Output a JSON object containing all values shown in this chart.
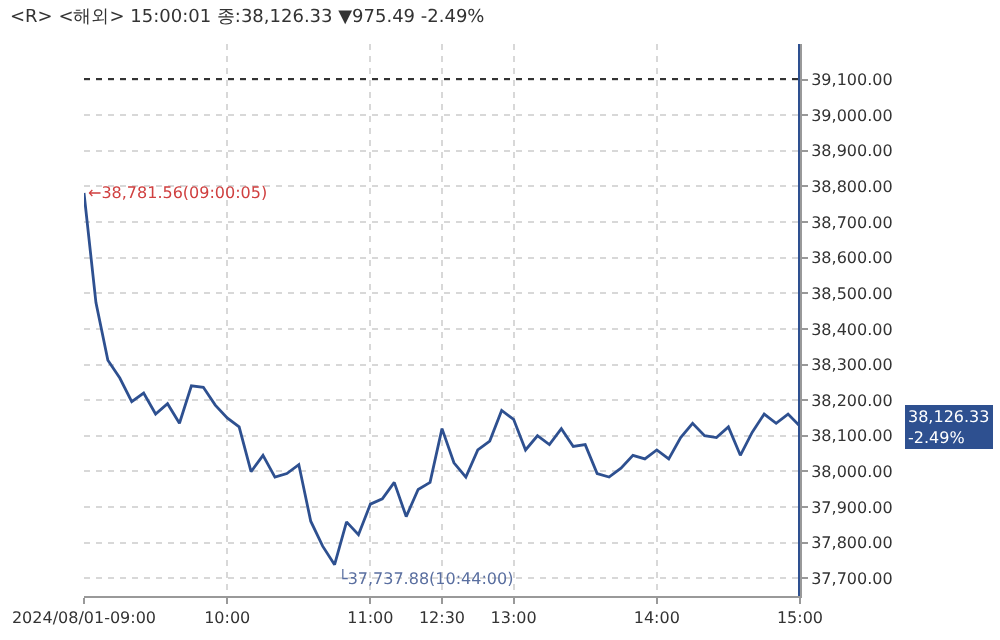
{
  "chart_data": {
    "type": "line",
    "title": "<R> <해외> 15:00:01 종:38,126.33 ▼975.49 -2.49%",
    "categories": [
      "2024/08/01-09:00",
      null,
      null,
      null,
      null,
      null,
      null,
      null,
      null,
      null,
      null,
      null,
      "10:00",
      null,
      null,
      null,
      null,
      null,
      null,
      null,
      null,
      null,
      null,
      null,
      "11:00",
      null,
      null,
      null,
      null,
      null,
      "12:30",
      null,
      null,
      null,
      null,
      null,
      "13:00",
      null,
      null,
      null,
      null,
      null,
      null,
      null,
      null,
      null,
      null,
      null,
      "14:00",
      null,
      null,
      null,
      null,
      null,
      null,
      null,
      null,
      null,
      null,
      null,
      "15:00"
    ],
    "series": [
      {
        "color": "#2e5090",
        "values": [
          38781.56,
          38474,
          38312,
          38262,
          38196,
          38220,
          38161,
          38190,
          38135,
          38240,
          38236,
          38186,
          38150,
          38125,
          37999,
          38045,
          37984,
          37994,
          38019,
          37860,
          37790,
          37737.88,
          37858,
          37822,
          37908,
          37923,
          37969,
          37873,
          37949,
          37969,
          38120,
          38024,
          37984,
          38060,
          38085,
          38171,
          38146,
          38060,
          38100,
          38075,
          38120,
          38070,
          38075,
          37994,
          37984,
          38009,
          38045,
          38035,
          38060,
          38035,
          38095,
          38135,
          38100,
          38095,
          38125,
          38045,
          38110,
          38161,
          38135,
          38161,
          38126.33
        ]
      }
    ],
    "ylim": [
      37650,
      39200
    ],
    "yticks": [
      {
        "value": 37700,
        "label": "37,700.00"
      },
      {
        "value": 37800,
        "label": "37,800.00"
      },
      {
        "value": 37900,
        "label": "37,900.00"
      },
      {
        "value": 38000,
        "label": "38,000.00"
      },
      {
        "value": 38100,
        "label": "38,100.00"
      },
      {
        "value": 38200,
        "label": "38,200.00"
      },
      {
        "value": 38300,
        "label": "38,300.00"
      },
      {
        "value": 38400,
        "label": "38,400.00"
      },
      {
        "value": 38500,
        "label": "38,500.00"
      },
      {
        "value": 38600,
        "label": "38,600.00"
      },
      {
        "value": 38700,
        "label": "38,700.00"
      },
      {
        "value": 38800,
        "label": "38,800.00"
      },
      {
        "value": 38900,
        "label": "38,900.00"
      },
      {
        "value": 39000,
        "label": "39,000.00"
      },
      {
        "value": 39100,
        "label": "39,100.00"
      }
    ],
    "ref_lines": [
      {
        "axis": "y",
        "value": 39101.82,
        "color": "#333333",
        "line_style": "dotted"
      },
      {
        "axis": "x",
        "value": "15:00",
        "color": "#2e5090",
        "line_style": "solid"
      }
    ],
    "annotations": [
      "←38,781.56(09:00:05)",
      "└37,737.88(10:44:00)",
      "38,126.33\n-2.49%"
    ],
    "grid": true,
    "marker": "none",
    "line_style": "solid"
  }
}
